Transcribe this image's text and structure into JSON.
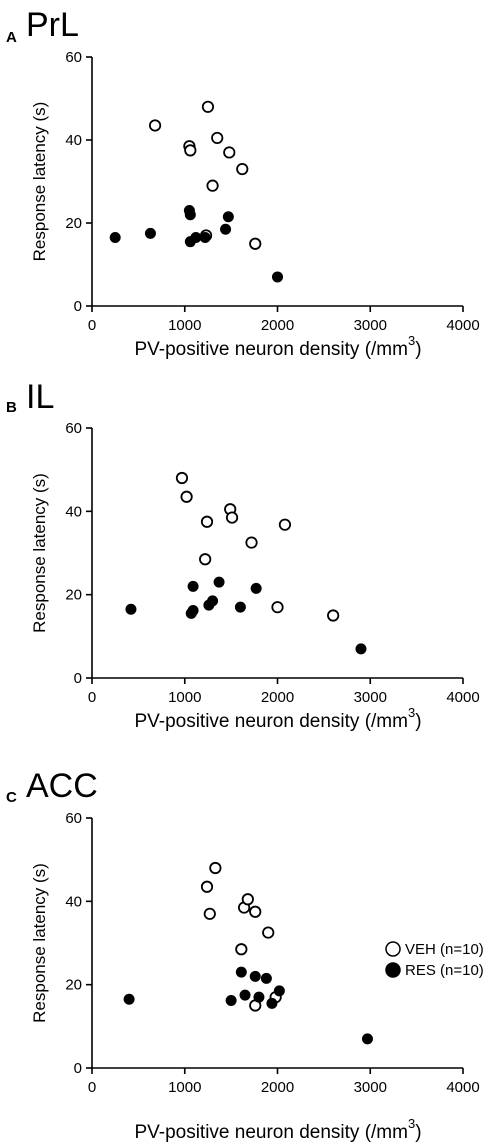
{
  "chart_data": [
    {
      "type": "scatter",
      "panel_letter": "A",
      "title": "PrL",
      "xlabel": "PV-positive neuron density (/mm",
      "xlabel_superscript": "3",
      "xlabel_suffix": ")",
      "ylabel": "Response latency (s)",
      "xlim": [
        0,
        4000
      ],
      "ylim": [
        0,
        60
      ],
      "xticks": [
        0,
        1000,
        2000,
        3000,
        4000
      ],
      "yticks": [
        0,
        20,
        40,
        60
      ],
      "grid": false,
      "series": [
        {
          "name": "VEH (n=10)",
          "marker": "open-circle",
          "points": [
            [
              680,
              43.5
            ],
            [
              1050,
              38.5
            ],
            [
              1060,
              37.5
            ],
            [
              1250,
              48
            ],
            [
              1300,
              29
            ],
            [
              1350,
              40.5
            ],
            [
              1480,
              37
            ],
            [
              1620,
              33
            ],
            [
              1230,
              17
            ],
            [
              1760,
              15
            ]
          ]
        },
        {
          "name": "RES (n=10)",
          "marker": "filled-circle",
          "points": [
            [
              250,
              16.5
            ],
            [
              630,
              17.5
            ],
            [
              1050,
              23
            ],
            [
              1060,
              22
            ],
            [
              1060,
              15.5
            ],
            [
              1120,
              16.5
            ],
            [
              1220,
              16.5
            ],
            [
              1440,
              18.5
            ],
            [
              1470,
              21.5
            ],
            [
              2000,
              7
            ]
          ]
        }
      ]
    },
    {
      "type": "scatter",
      "panel_letter": "B",
      "title": "IL",
      "xlabel": "PV-positive neuron density (/mm",
      "xlabel_superscript": "3",
      "xlabel_suffix": ")",
      "ylabel": "Response latency (s)",
      "xlim": [
        0,
        4000
      ],
      "ylim": [
        0,
        60
      ],
      "xticks": [
        0,
        1000,
        2000,
        3000,
        4000
      ],
      "yticks": [
        0,
        20,
        40,
        60
      ],
      "grid": false,
      "series": [
        {
          "name": "VEH (n=10)",
          "marker": "open-circle",
          "points": [
            [
              970,
              48
            ],
            [
              1020,
              43.5
            ],
            [
              1220,
              28.5
            ],
            [
              1240,
              37.5
            ],
            [
              1490,
              40.5
            ],
            [
              1510,
              38.5
            ],
            [
              1720,
              32.5
            ],
            [
              2080,
              36.8
            ],
            [
              2000,
              17
            ],
            [
              2600,
              15
            ]
          ]
        },
        {
          "name": "RES (n=10)",
          "marker": "filled-circle",
          "points": [
            [
              420,
              16.5
            ],
            [
              1070,
              15.5
            ],
            [
              1090,
              16.2
            ],
            [
              1090,
              22
            ],
            [
              1260,
              17.5
            ],
            [
              1300,
              18.5
            ],
            [
              1370,
              23
            ],
            [
              1600,
              17
            ],
            [
              1770,
              21.5
            ],
            [
              2900,
              7
            ]
          ]
        }
      ]
    },
    {
      "type": "scatter",
      "panel_letter": "C",
      "title": "ACC",
      "xlabel": "PV-positive neuron density (/mm",
      "xlabel_superscript": "3",
      "xlabel_suffix": ")",
      "ylabel": "Response latency (s)",
      "xlim": [
        0,
        4000
      ],
      "ylim": [
        0,
        60
      ],
      "xticks": [
        0,
        1000,
        2000,
        3000,
        4000
      ],
      "yticks": [
        0,
        20,
        40,
        60
      ],
      "grid": false,
      "legend_position": "right",
      "series": [
        {
          "name": "VEH (n=10)",
          "marker": "open-circle",
          "points": [
            [
              1240,
              43.5
            ],
            [
              1270,
              37
            ],
            [
              1330,
              48
            ],
            [
              1610,
              28.5
            ],
            [
              1640,
              38.5
            ],
            [
              1680,
              40.5
            ],
            [
              1760,
              37.5
            ],
            [
              1900,
              32.5
            ],
            [
              1980,
              17
            ],
            [
              1760,
              15
            ]
          ]
        },
        {
          "name": "RES (n=10)",
          "marker": "filled-circle",
          "points": [
            [
              400,
              16.5
            ],
            [
              1500,
              16.2
            ],
            [
              1610,
              23
            ],
            [
              1650,
              17.5
            ],
            [
              1760,
              22
            ],
            [
              1800,
              17
            ],
            [
              1880,
              21.5
            ],
            [
              1940,
              15.5
            ],
            [
              2020,
              18.5
            ],
            [
              2970,
              7
            ]
          ]
        }
      ]
    }
  ]
}
